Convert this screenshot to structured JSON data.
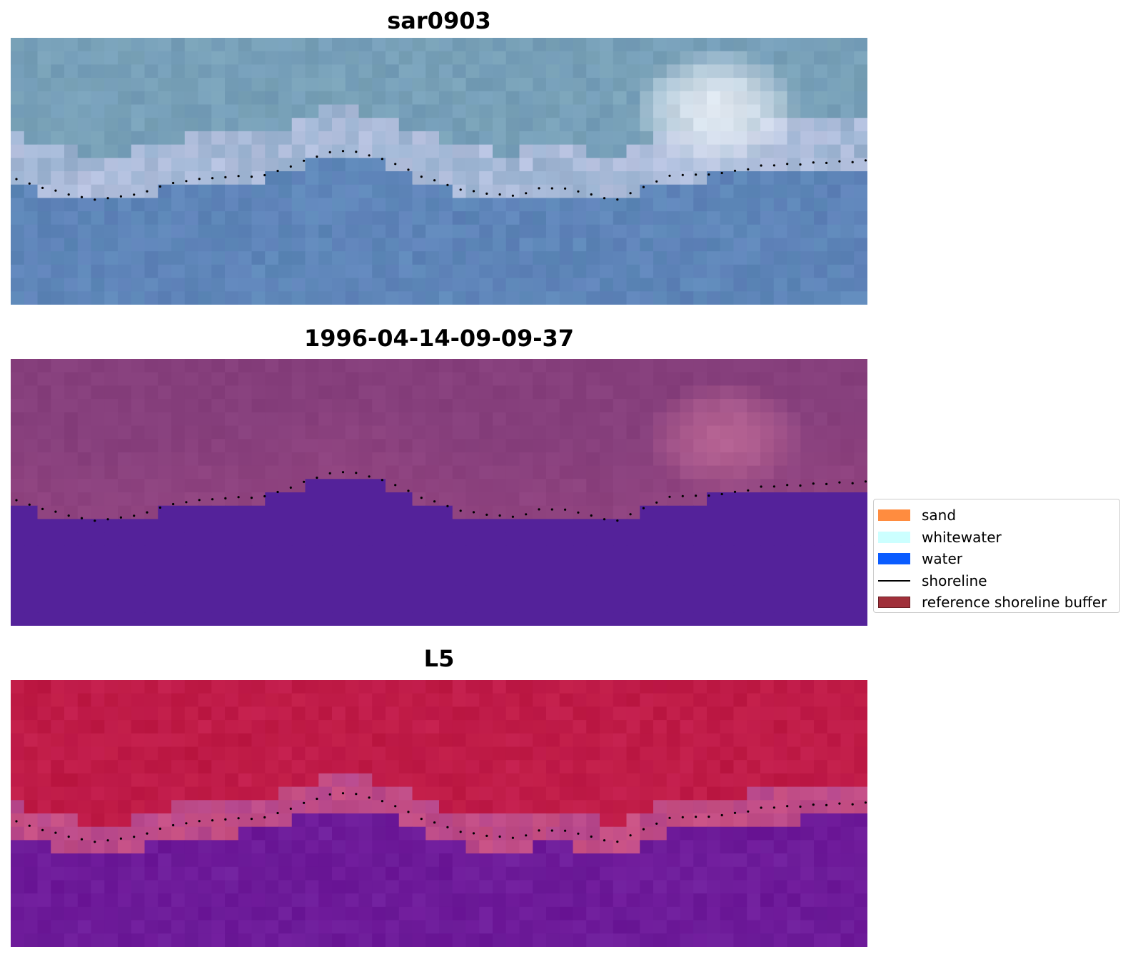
{
  "panels": [
    {
      "title": "sar0903"
    },
    {
      "title": "1996-04-14-09-09-37"
    },
    {
      "title": "L5"
    }
  ],
  "legend": {
    "items": [
      {
        "label": "sand",
        "color": "#ff8c3f",
        "kind": "patch"
      },
      {
        "label": "whitewater",
        "color": "#ccffff",
        "kind": "patch"
      },
      {
        "label": "water",
        "color": "#0a5cff",
        "kind": "patch"
      },
      {
        "label": "shoreline",
        "color": "#000000",
        "kind": "line"
      },
      {
        "label": "reference shoreline buffer",
        "color": "#a0303a",
        "kind": "patch"
      }
    ]
  },
  "colors": {
    "rgb_water": "#5d88b8",
    "rgb_sand": "#7aa3b8",
    "rgb_whitewater": "#e6ecf4",
    "class_land": "#863f7c",
    "class_water": "#54229a",
    "index_land": "#be1a44",
    "index_water": "#6d1898"
  }
}
